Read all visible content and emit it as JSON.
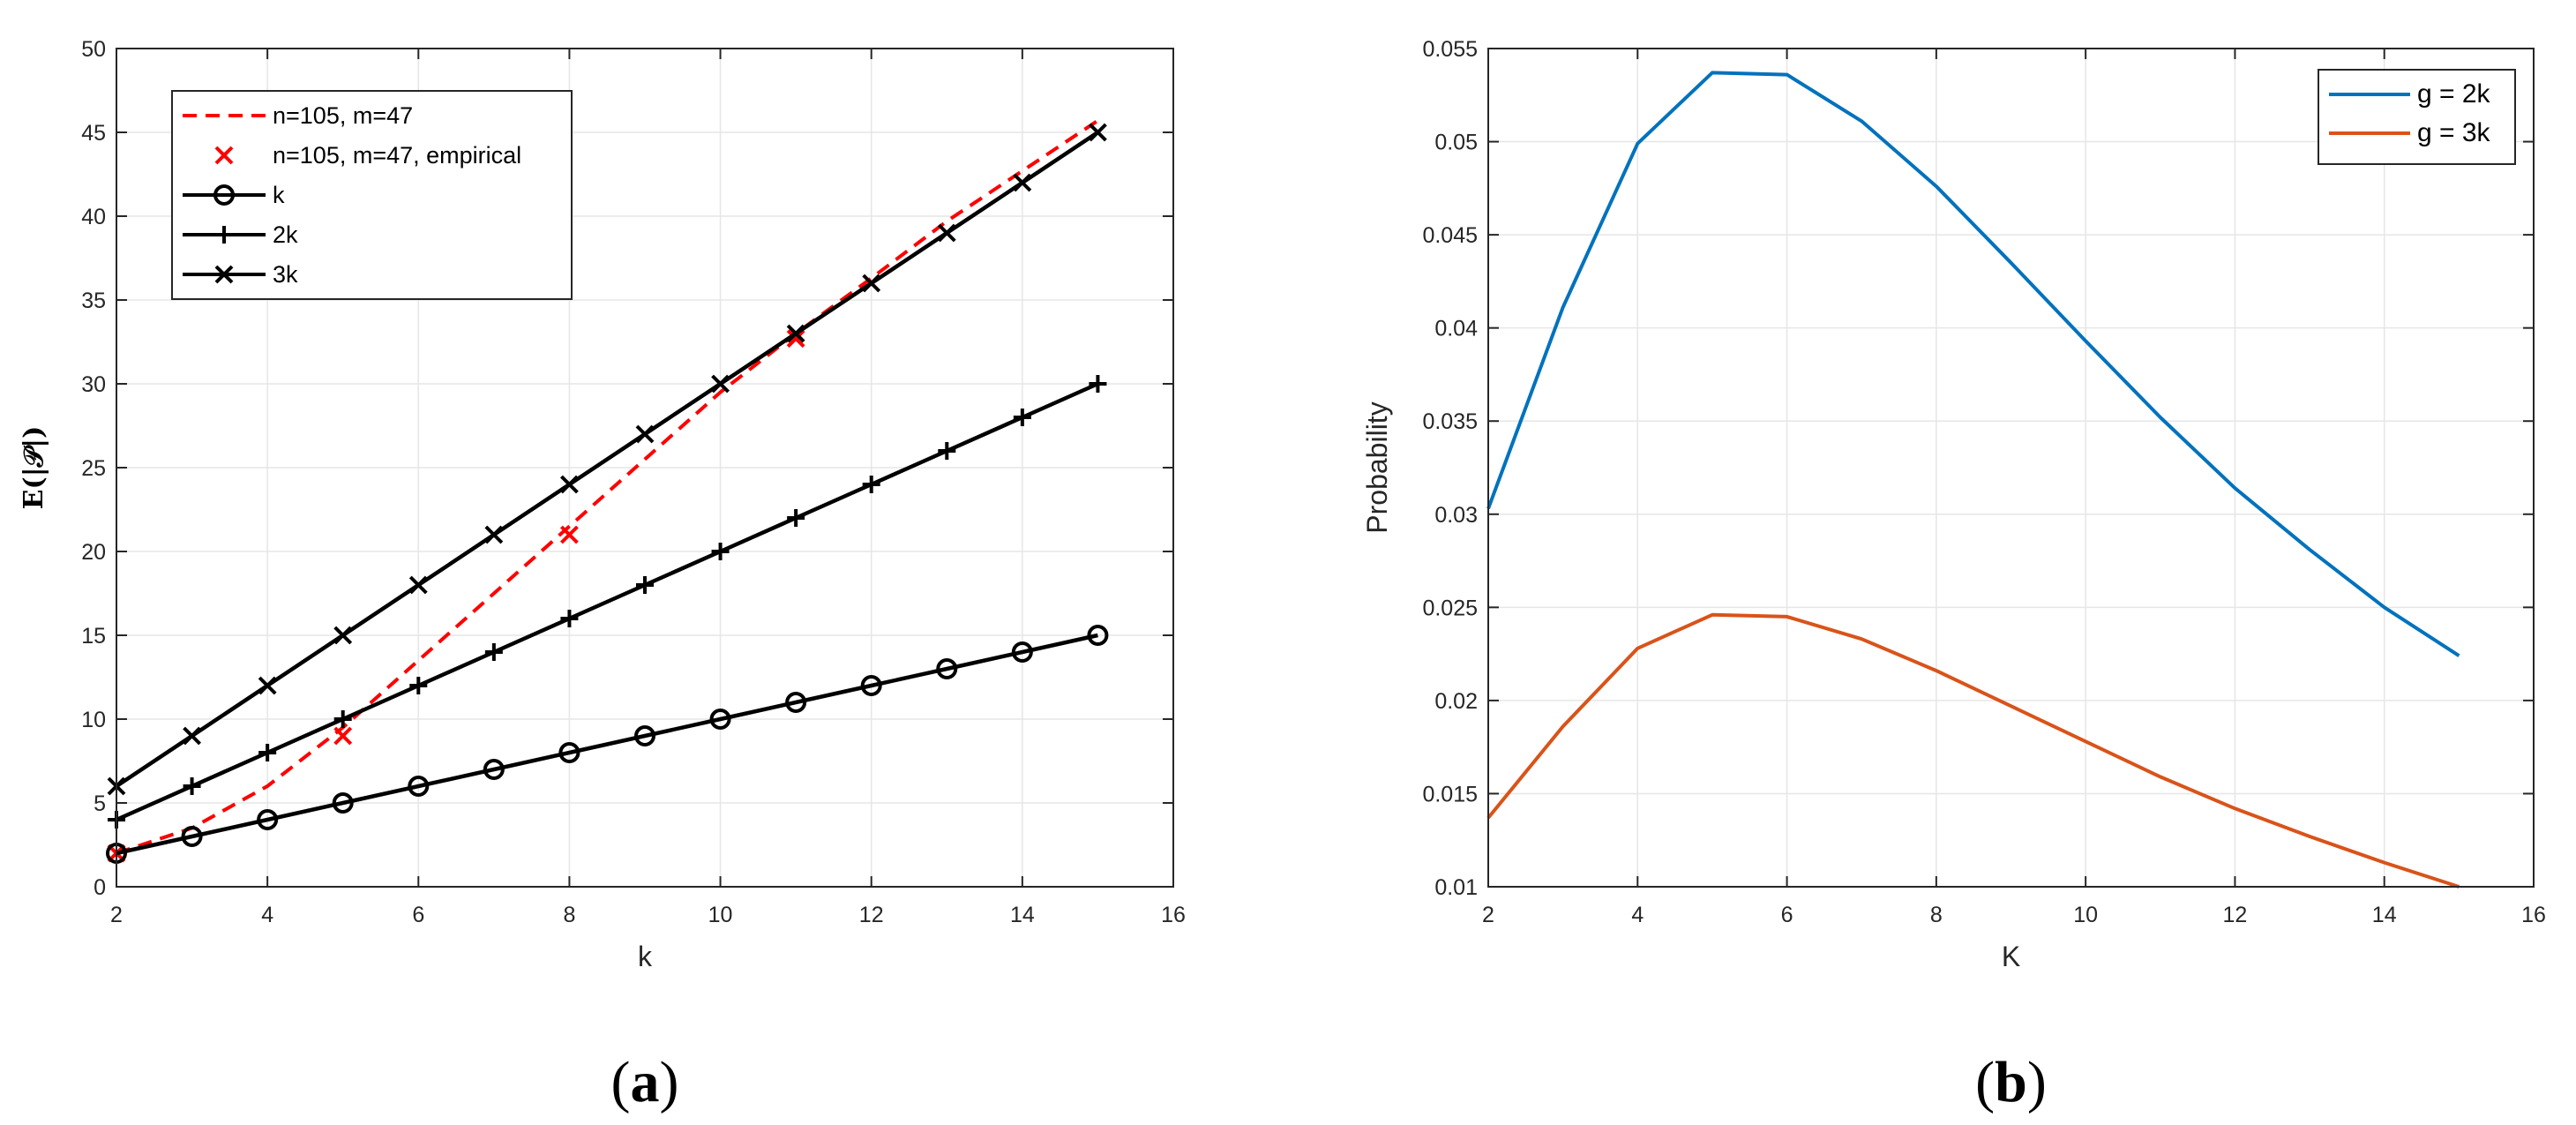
{
  "chart_data": [
    {
      "type": "line",
      "caption": "(a)",
      "caption_letter": "a",
      "xlabel": "k",
      "ylabel": "E(|𝒫|)",
      "xlim": [
        2,
        16
      ],
      "ylim": [
        0,
        50
      ],
      "xticks": [
        2,
        4,
        6,
        8,
        10,
        12,
        14,
        16
      ],
      "yticks": [
        0,
        5,
        10,
        15,
        20,
        25,
        30,
        35,
        40,
        45,
        50
      ],
      "grid": true,
      "legend_position": "top-left",
      "series": [
        {
          "name": "n=105, m=47",
          "style": "dashed",
          "marker": "none",
          "color": "#ff0000",
          "x": [
            2,
            3,
            4,
            5,
            6,
            7,
            8,
            9,
            10,
            11,
            12,
            13,
            14,
            15
          ],
          "y": [
            2.0,
            3.5,
            6.0,
            9.5,
            13.5,
            17.5,
            21.5,
            25.5,
            29.5,
            33.0,
            36.3,
            39.7,
            42.7,
            45.7
          ]
        },
        {
          "name": "n=105, m=47, empirical",
          "style": "none",
          "marker": "x",
          "color": "#ff0000",
          "x": [
            2,
            5,
            8,
            11
          ],
          "y": [
            2.0,
            9.0,
            21.0,
            32.7
          ]
        },
        {
          "name": "k",
          "style": "solid",
          "marker": "o",
          "color": "#000000",
          "x": [
            2,
            3,
            4,
            5,
            6,
            7,
            8,
            9,
            10,
            11,
            12,
            13,
            14,
            15
          ],
          "y": [
            2,
            3,
            4,
            5,
            6,
            7,
            8,
            9,
            10,
            11,
            12,
            13,
            14,
            15
          ]
        },
        {
          "name": "2k",
          "style": "solid",
          "marker": "+",
          "color": "#000000",
          "x": [
            2,
            3,
            4,
            5,
            6,
            7,
            8,
            9,
            10,
            11,
            12,
            13,
            14,
            15
          ],
          "y": [
            4,
            6,
            8,
            10,
            12,
            14,
            16,
            18,
            20,
            22,
            24,
            26,
            28,
            30
          ]
        },
        {
          "name": "3k",
          "style": "solid",
          "marker": "x",
          "color": "#000000",
          "x": [
            2,
            3,
            4,
            5,
            6,
            7,
            8,
            9,
            10,
            11,
            12,
            13,
            14,
            15
          ],
          "y": [
            6,
            9,
            12,
            15,
            18,
            21,
            24,
            27,
            30,
            33,
            36,
            39,
            42,
            45
          ]
        }
      ]
    },
    {
      "type": "line",
      "caption": "(b)",
      "caption_letter": "b",
      "xlabel": "K",
      "ylabel": "Probability",
      "xlim": [
        2,
        16
      ],
      "ylim": [
        0.01,
        0.055
      ],
      "xticks": [
        2,
        4,
        6,
        8,
        10,
        12,
        14,
        16
      ],
      "yticks": [
        0.01,
        0.015,
        0.02,
        0.025,
        0.03,
        0.035,
        0.04,
        0.045,
        0.05,
        0.055
      ],
      "ytick_labels": [
        "0.01",
        "0.015",
        "0.02",
        "0.025",
        "0.03",
        "0.035",
        "0.04",
        "0.045",
        "0.05",
        "0.055"
      ],
      "grid": true,
      "legend_position": "top-right",
      "series": [
        {
          "name": "g = 2k",
          "style": "solid",
          "marker": "none",
          "color": "#0072bd",
          "x": [
            2,
            3,
            4,
            5,
            6,
            7,
            8,
            9,
            10,
            11,
            12,
            13,
            14,
            15
          ],
          "y": [
            0.0303,
            0.0411,
            0.0499,
            0.0537,
            0.0536,
            0.0511,
            0.0476,
            0.0435,
            0.0393,
            0.0352,
            0.0314,
            0.0281,
            0.025,
            0.0224
          ]
        },
        {
          "name": "g = 3k",
          "style": "solid",
          "marker": "none",
          "color": "#d95319",
          "x": [
            2,
            3,
            4,
            5,
            6,
            7,
            8,
            9,
            10,
            11,
            12,
            13,
            14,
            15
          ],
          "y": [
            0.0137,
            0.0186,
            0.0228,
            0.0246,
            0.0245,
            0.0233,
            0.0216,
            0.0197,
            0.0178,
            0.0159,
            0.0142,
            0.0127,
            0.0113,
            0.01
          ]
        }
      ]
    }
  ]
}
